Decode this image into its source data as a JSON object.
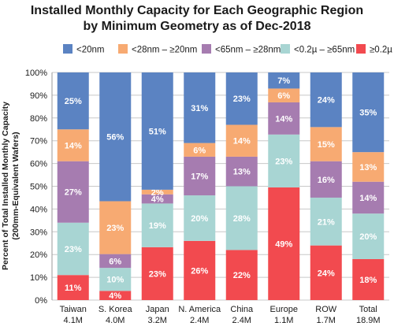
{
  "chart_data": {
    "type": "bar",
    "stacked": true,
    "title_lines": [
      "Installed Monthly Capacity for Each Geographic Region",
      "by Minimum Geometry as of Dec-2018"
    ],
    "ylabel_lines": [
      "Percent of Total Installed Monthly Capacity",
      "(200mm-Equivalent Wafers)"
    ],
    "ylim": [
      0,
      100
    ],
    "yticks": [
      "0%",
      "10%",
      "20%",
      "30%",
      "40%",
      "50%",
      "60%",
      "70%",
      "80%",
      "90%",
      "100%"
    ],
    "legend_position": "top",
    "categories": [
      "Taiwan",
      "S. Korea",
      "Japan",
      "N. America",
      "China",
      "Europe",
      "ROW",
      "Total"
    ],
    "category_totals": [
      "4.1M",
      "4.0M",
      "3.2M",
      "2.4M",
      "2.4M",
      "1.1M",
      "1.7M",
      "18.9M"
    ],
    "series": [
      {
        "name": "≥0.2µ",
        "color": "#f24a4f",
        "values": [
          11,
          4,
          23,
          26,
          22,
          49,
          24,
          18
        ]
      },
      {
        "name": "<0.2µ – ≥65nm",
        "color": "#a8d5d3",
        "values": [
          23,
          10,
          19,
          20,
          28,
          23,
          21,
          20
        ]
      },
      {
        "name": "<65nm – ≥28nm",
        "color": "#a67cb0",
        "values": [
          27,
          6,
          4,
          17,
          13,
          14,
          16,
          14
        ]
      },
      {
        "name": "<28nm – ≥20nm",
        "color": "#f7aa72",
        "values": [
          14,
          23,
          2,
          6,
          14,
          6,
          15,
          13
        ]
      },
      {
        "name": "<20nm",
        "color": "#5b83c2",
        "values": [
          25,
          56,
          51,
          31,
          23,
          7,
          24,
          35
        ]
      }
    ],
    "legend_order": [
      4,
      3,
      2,
      1,
      0
    ]
  }
}
